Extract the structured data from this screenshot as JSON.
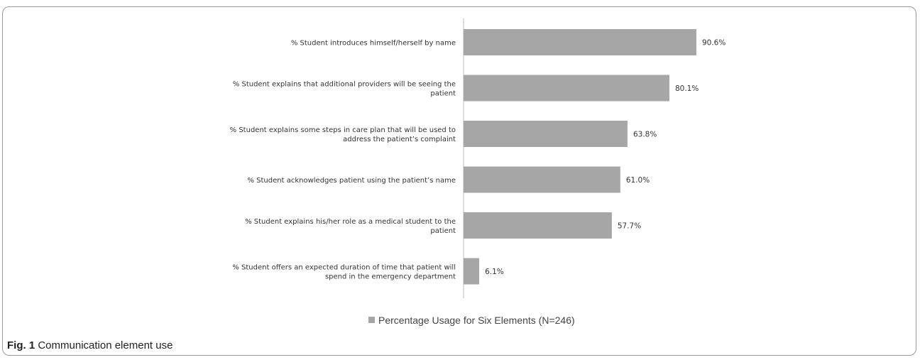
{
  "chart_data": {
    "type": "bar",
    "orientation": "horizontal",
    "categories": [
      [
        "% Student introduces himself/herself by name"
      ],
      [
        "% Student explains that additional providers will be seeing the",
        "patient"
      ],
      [
        "% Student explains some steps in care plan that will be used to",
        "address the patient’s complaint"
      ],
      [
        "% Student acknowledges patient using the patient’s name"
      ],
      [
        "% Student explains his/her role as a medical student to the",
        "patient"
      ],
      [
        "% Student offers an expected duration of time that patient will",
        "spend in the emergency department"
      ]
    ],
    "series": [
      {
        "name": "Percentage Usage for Six Elements (N=246)",
        "values": [
          90.6,
          80.1,
          63.8,
          61.0,
          57.7,
          6.1
        ],
        "value_labels": [
          "90.6%",
          "80.1%",
          "63.8%",
          "61.0%",
          "57.7%",
          "6.1%"
        ],
        "color": "#a6a6a6"
      }
    ],
    "xlim": [
      0,
      100
    ],
    "grid": false,
    "legend_position": "bottom"
  },
  "caption": {
    "label": "Fig. 1",
    "text": " Communication element use"
  }
}
